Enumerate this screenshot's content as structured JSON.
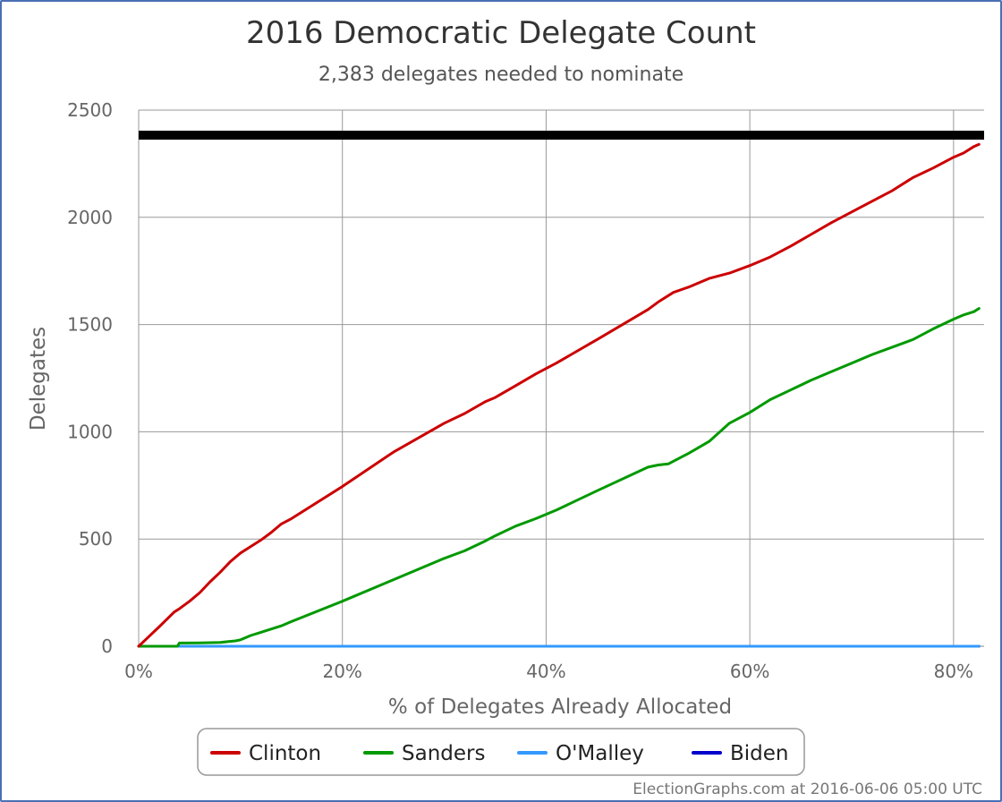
{
  "credit": "ElectionGraphs.com at 2016-06-06 05:00 UTC",
  "chart_data": {
    "type": "line",
    "title": "2016 Democratic Delegate Count",
    "subtitle": "2,383 delegates needed to nominate",
    "xlabel": "% of Delegates Already Allocated",
    "ylabel": "Delegates",
    "xlim": [
      0,
      83
    ],
    "ylim": [
      0,
      2500
    ],
    "x_ticks": [
      0,
      20,
      40,
      60,
      80
    ],
    "x_tick_labels": [
      "0%",
      "20%",
      "40%",
      "60%",
      "80%"
    ],
    "y_ticks": [
      0,
      500,
      1000,
      1500,
      2000,
      2500
    ],
    "y_tick_labels": [
      "0",
      "500",
      "1000",
      "1500",
      "2000",
      "2500"
    ],
    "grid": true,
    "legend_position": "bottom",
    "threshold": {
      "value": 2383,
      "color": "#000000"
    },
    "series": [
      {
        "name": "Clinton",
        "color": "#cc0000",
        "points": [
          [
            0,
            0
          ],
          [
            1,
            45
          ],
          [
            2,
            90
          ],
          [
            3.5,
            160
          ],
          [
            4,
            175
          ],
          [
            5,
            210
          ],
          [
            6,
            250
          ],
          [
            7,
            300
          ],
          [
            8,
            345
          ],
          [
            9,
            395
          ],
          [
            10,
            435
          ],
          [
            11,
            465
          ],
          [
            12,
            495
          ],
          [
            13,
            530
          ],
          [
            14,
            570
          ],
          [
            15,
            595
          ],
          [
            20,
            745
          ],
          [
            25,
            905
          ],
          [
            30,
            1040
          ],
          [
            32,
            1085
          ],
          [
            34,
            1140
          ],
          [
            35,
            1160
          ],
          [
            37,
            1215
          ],
          [
            39,
            1270
          ],
          [
            41,
            1320
          ],
          [
            45,
            1430
          ],
          [
            50,
            1570
          ],
          [
            51,
            1605
          ],
          [
            52.5,
            1650
          ],
          [
            54,
            1675
          ],
          [
            56,
            1715
          ],
          [
            58,
            1740
          ],
          [
            60,
            1775
          ],
          [
            62,
            1815
          ],
          [
            64,
            1865
          ],
          [
            66,
            1920
          ],
          [
            68,
            1975
          ],
          [
            70,
            2025
          ],
          [
            72,
            2075
          ],
          [
            74,
            2125
          ],
          [
            76,
            2185
          ],
          [
            78,
            2230
          ],
          [
            80,
            2280
          ],
          [
            81,
            2300
          ],
          [
            82,
            2330
          ],
          [
            82.5,
            2340
          ]
        ]
      },
      {
        "name": "Sanders",
        "color": "#009900",
        "points": [
          [
            0,
            0
          ],
          [
            3.8,
            0
          ],
          [
            4,
            15
          ],
          [
            6,
            16
          ],
          [
            8,
            18
          ],
          [
            9.5,
            25
          ],
          [
            10,
            30
          ],
          [
            11,
            50
          ],
          [
            12,
            65
          ],
          [
            13,
            80
          ],
          [
            14,
            95
          ],
          [
            15,
            115
          ],
          [
            20,
            210
          ],
          [
            25,
            310
          ],
          [
            30,
            410
          ],
          [
            32,
            445
          ],
          [
            34,
            490
          ],
          [
            35,
            515
          ],
          [
            37,
            560
          ],
          [
            39,
            595
          ],
          [
            41,
            635
          ],
          [
            45,
            725
          ],
          [
            50,
            835
          ],
          [
            51,
            845
          ],
          [
            52,
            850
          ],
          [
            54,
            900
          ],
          [
            56,
            955
          ],
          [
            58,
            1040
          ],
          [
            60,
            1090
          ],
          [
            62,
            1150
          ],
          [
            64,
            1195
          ],
          [
            66,
            1240
          ],
          [
            68,
            1280
          ],
          [
            70,
            1320
          ],
          [
            72,
            1360
          ],
          [
            74,
            1395
          ],
          [
            76,
            1430
          ],
          [
            78,
            1480
          ],
          [
            80,
            1525
          ],
          [
            81,
            1545
          ],
          [
            82,
            1560
          ],
          [
            82.5,
            1575
          ]
        ]
      },
      {
        "name": "O'Malley",
        "color": "#3399ff",
        "points": [
          [
            0,
            0
          ],
          [
            82.5,
            0
          ]
        ]
      },
      {
        "name": "Biden",
        "color": "#0000cc",
        "points": [
          [
            0,
            0
          ],
          [
            82.5,
            0
          ]
        ]
      }
    ]
  }
}
